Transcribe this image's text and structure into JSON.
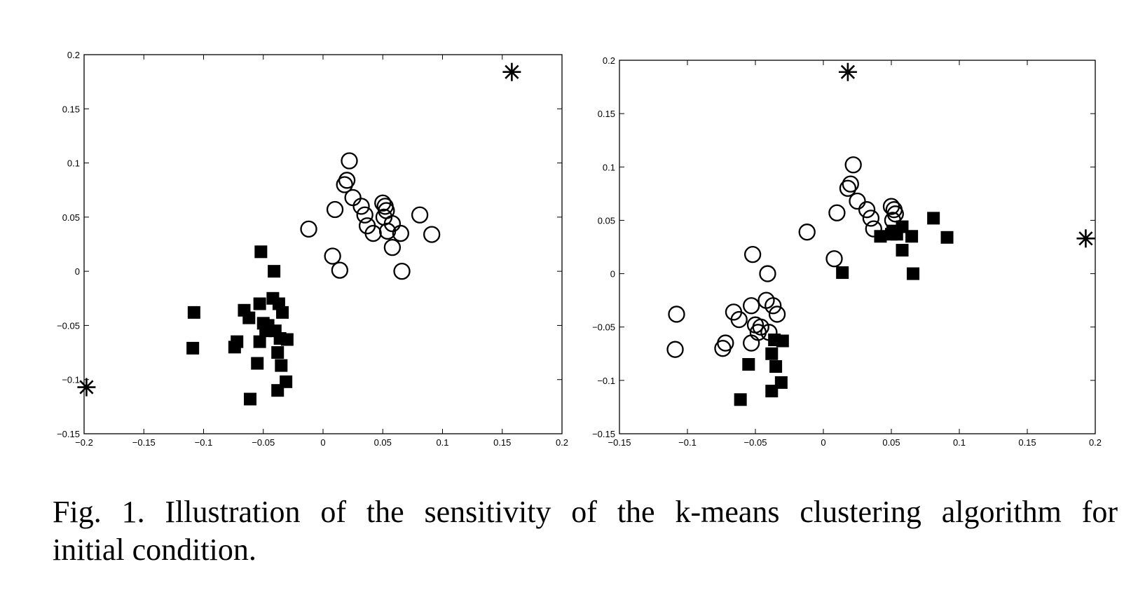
{
  "caption": {
    "line1": "Fig. 1.   Illustration of the sensitivity of the k-means clustering algorithm for",
    "line2": "initial condition."
  },
  "colors": {
    "ink": "#000000",
    "background": "#ffffff"
  },
  "marker_legend": {
    "circle": "cluster-1 point (open circle)",
    "square": "cluster-2 point (filled square)",
    "star": "initial centroid (asterisk)"
  },
  "chart_data": [
    {
      "type": "scatter",
      "xlim": [
        -0.2,
        0.2
      ],
      "ylim": [
        -0.15,
        0.2
      ],
      "xticks": [
        -0.2,
        -0.15,
        -0.1,
        -0.05,
        0,
        0.05,
        0.1,
        0.15,
        0.2
      ],
      "xtick_labels": [
        "−0.2",
        "−0.15",
        "−0.1",
        "−0.05",
        "0",
        "0.05",
        "0.1",
        "0.15",
        "0.2"
      ],
      "yticks": [
        -0.15,
        -0.1,
        -0.05,
        0,
        0.05,
        0.1,
        0.15,
        0.2
      ],
      "ytick_labels": [
        "−0.15",
        "−0.1",
        "−0.05",
        "0",
        "0.05",
        "0.1",
        "0.15",
        "0.2"
      ],
      "grid": false,
      "series": [
        {
          "marker": "circle",
          "points": [
            [
              -0.012,
              0.039
            ],
            [
              0.008,
              0.014
            ],
            [
              0.01,
              0.057
            ],
            [
              0.014,
              0.001
            ],
            [
              0.018,
              0.08
            ],
            [
              0.02,
              0.084
            ],
            [
              0.022,
              0.102
            ],
            [
              0.025,
              0.068
            ],
            [
              0.032,
              0.06
            ],
            [
              0.035,
              0.052
            ],
            [
              0.037,
              0.042
            ],
            [
              0.042,
              0.035
            ],
            [
              0.05,
              0.063
            ],
            [
              0.051,
              0.05
            ],
            [
              0.052,
              0.06
            ],
            [
              0.053,
              0.056
            ],
            [
              0.054,
              0.037
            ],
            [
              0.058,
              0.044
            ],
            [
              0.058,
              0.022
            ],
            [
              0.065,
              0.035
            ],
            [
              0.066,
              0.0
            ],
            [
              0.081,
              0.052
            ],
            [
              0.091,
              0.034
            ]
          ]
        },
        {
          "marker": "square",
          "points": [
            [
              -0.108,
              -0.038
            ],
            [
              -0.109,
              -0.071
            ],
            [
              -0.072,
              -0.065
            ],
            [
              -0.074,
              -0.07
            ],
            [
              -0.066,
              -0.036
            ],
            [
              -0.062,
              -0.043
            ],
            [
              -0.061,
              -0.118
            ],
            [
              -0.055,
              -0.085
            ],
            [
              -0.053,
              -0.03
            ],
            [
              -0.053,
              -0.065
            ],
            [
              -0.052,
              0.018
            ],
            [
              -0.05,
              -0.048
            ],
            [
              -0.048,
              -0.055
            ],
            [
              -0.046,
              -0.05
            ],
            [
              -0.042,
              -0.025
            ],
            [
              -0.041,
              0.0
            ],
            [
              -0.04,
              -0.055
            ],
            [
              -0.038,
              -0.11
            ],
            [
              -0.038,
              -0.075
            ],
            [
              -0.037,
              -0.03
            ],
            [
              -0.036,
              -0.062
            ],
            [
              -0.035,
              -0.087
            ],
            [
              -0.034,
              -0.038
            ],
            [
              -0.031,
              -0.102
            ],
            [
              -0.03,
              -0.063
            ]
          ]
        },
        {
          "marker": "star",
          "points": [
            [
              -0.198,
              -0.107
            ],
            [
              0.158,
              0.184
            ]
          ]
        }
      ]
    },
    {
      "type": "scatter",
      "xlim": [
        -0.15,
        0.2
      ],
      "ylim": [
        -0.15,
        0.2
      ],
      "xticks": [
        -0.15,
        -0.1,
        -0.05,
        0,
        0.05,
        0.1,
        0.15,
        0.2
      ],
      "xtick_labels": [
        "−0.15",
        "−0.1",
        "−0.05",
        "0",
        "0.05",
        "0.1",
        "0.15",
        "0.2"
      ],
      "yticks": [
        -0.15,
        -0.1,
        -0.05,
        0,
        0.05,
        0.1,
        0.15,
        0.2
      ],
      "ytick_labels": [
        "−0.15",
        "−0.1",
        "−0.05",
        "0",
        "0.05",
        "0.1",
        "0.15",
        "0.2"
      ],
      "grid": false,
      "series": [
        {
          "marker": "circle",
          "points": [
            [
              -0.108,
              -0.038
            ],
            [
              -0.109,
              -0.071
            ],
            [
              -0.072,
              -0.065
            ],
            [
              -0.074,
              -0.07
            ],
            [
              -0.066,
              -0.036
            ],
            [
              -0.062,
              -0.043
            ],
            [
              -0.053,
              -0.03
            ],
            [
              -0.053,
              -0.065
            ],
            [
              -0.052,
              0.018
            ],
            [
              -0.05,
              -0.048
            ],
            [
              -0.048,
              -0.055
            ],
            [
              -0.046,
              -0.05
            ],
            [
              -0.042,
              -0.025
            ],
            [
              -0.041,
              0.0
            ],
            [
              -0.04,
              -0.055
            ],
            [
              -0.037,
              -0.03
            ],
            [
              -0.034,
              -0.038
            ],
            [
              -0.012,
              0.039
            ],
            [
              0.008,
              0.014
            ],
            [
              0.01,
              0.057
            ],
            [
              0.018,
              0.08
            ],
            [
              0.02,
              0.084
            ],
            [
              0.022,
              0.102
            ],
            [
              0.025,
              0.068
            ],
            [
              0.032,
              0.06
            ],
            [
              0.035,
              0.052
            ],
            [
              0.037,
              0.042
            ],
            [
              0.05,
              0.063
            ],
            [
              0.051,
              0.05
            ],
            [
              0.052,
              0.06
            ],
            [
              0.053,
              0.056
            ]
          ]
        },
        {
          "marker": "square",
          "points": [
            [
              -0.061,
              -0.118
            ],
            [
              -0.055,
              -0.085
            ],
            [
              -0.038,
              -0.11
            ],
            [
              -0.038,
              -0.075
            ],
            [
              -0.036,
              -0.062
            ],
            [
              -0.035,
              -0.087
            ],
            [
              -0.031,
              -0.102
            ],
            [
              -0.03,
              -0.063
            ],
            [
              0.014,
              0.001
            ],
            [
              0.042,
              0.035
            ],
            [
              0.05,
              0.037
            ],
            [
              0.051,
              0.04
            ],
            [
              0.054,
              0.037
            ],
            [
              0.058,
              0.044
            ],
            [
              0.058,
              0.022
            ],
            [
              0.065,
              0.035
            ],
            [
              0.066,
              0.0
            ],
            [
              0.081,
              0.052
            ],
            [
              0.091,
              0.034
            ]
          ]
        },
        {
          "marker": "star",
          "points": [
            [
              0.018,
              0.189
            ],
            [
              0.193,
              0.033
            ]
          ]
        }
      ]
    }
  ]
}
